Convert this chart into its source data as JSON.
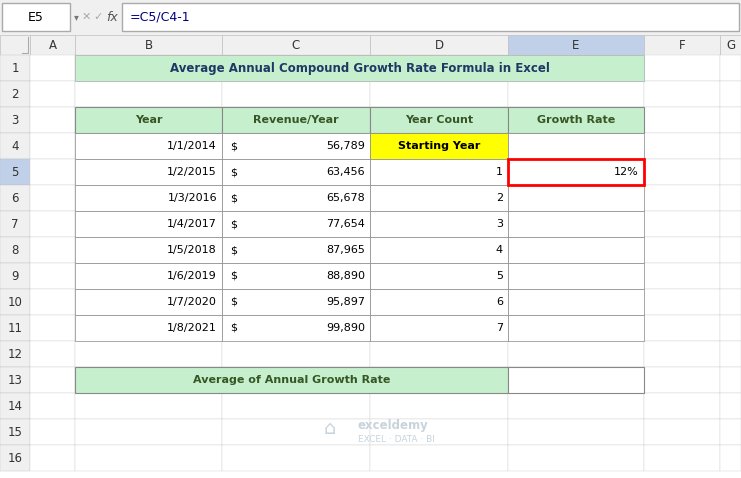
{
  "title": "Average Annual Compound Growth Rate Formula in Excel",
  "formula_bar_cell": "E5",
  "formula_bar_formula": "=C5/C4-1",
  "header_bg": "#c6efce",
  "header_text_color": "#375623",
  "title_bg": "#c6efce",
  "title_text_color": "#1f3864",
  "col_headers": [
    "Year",
    "Revenue/Year",
    "Year Count",
    "Growth Rate"
  ],
  "rows": [
    {
      "year": "1/1/2014",
      "revenue_dollar": "$",
      "revenue_num": "56,789",
      "year_count": "Starting Year",
      "growth_rate": "",
      "yc_bg": "#ffff00",
      "yc_bold": true
    },
    {
      "year": "1/2/2015",
      "revenue_dollar": "$",
      "revenue_num": "63,456",
      "year_count": "1",
      "growth_rate": "12%",
      "yc_bg": "#ffffff",
      "yc_bold": false
    },
    {
      "year": "1/3/2016",
      "revenue_dollar": "$",
      "revenue_num": "65,678",
      "year_count": "2",
      "growth_rate": "",
      "yc_bg": "#ffffff",
      "yc_bold": false
    },
    {
      "year": "1/4/2017",
      "revenue_dollar": "$",
      "revenue_num": "77,654",
      "year_count": "3",
      "growth_rate": "",
      "yc_bg": "#ffffff",
      "yc_bold": false
    },
    {
      "year": "1/5/2018",
      "revenue_dollar": "$",
      "revenue_num": "87,965",
      "year_count": "4",
      "growth_rate": "",
      "yc_bg": "#ffffff",
      "yc_bold": false
    },
    {
      "year": "1/6/2019",
      "revenue_dollar": "$",
      "revenue_num": "88,890",
      "year_count": "5",
      "growth_rate": "",
      "yc_bg": "#ffffff",
      "yc_bold": false
    },
    {
      "year": "1/7/2020",
      "revenue_dollar": "$",
      "revenue_num": "95,897",
      "year_count": "6",
      "growth_rate": "",
      "yc_bg": "#ffffff",
      "yc_bold": false
    },
    {
      "year": "1/8/2021",
      "revenue_dollar": "$",
      "revenue_num": "99,890",
      "year_count": "7",
      "growth_rate": "",
      "yc_bg": "#ffffff",
      "yc_bold": false
    }
  ],
  "footer_label": "Average of Annual Growth Rate",
  "footer_bg": "#c6efce",
  "footer_text_color": "#375623",
  "highlight_cell_border": "#ff0000",
  "highlighted_row": 5,
  "watermark_color": "#c8d4dc",
  "n_rows": 16,
  "col_labels": [
    "A",
    "B",
    "C",
    "D",
    "E",
    "F",
    "G"
  ],
  "row_label_highlight": 5,
  "col_label_highlight": "E"
}
